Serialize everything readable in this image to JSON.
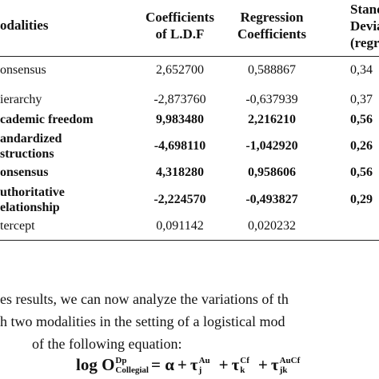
{
  "table": {
    "header": [
      "odalities",
      [
        "Coefficients",
        "of L.D.F"
      ],
      [
        "Regression",
        "Coefficients"
      ],
      [
        "Stand",
        "Devia",
        "(regre"
      ]
    ],
    "rows": [
      {
        "label": [
          "onsensus"
        ],
        "bold": false,
        "cells": [
          "2,652700",
          "0,588867",
          "0,34"
        ]
      },
      {
        "label": [
          "ierarchy"
        ],
        "bold": false,
        "cells": [
          "-2,873760",
          "-0,637939",
          "0,37"
        ]
      },
      {
        "label": [
          "cademic freedom"
        ],
        "bold": true,
        "cells": [
          "9,983480",
          "2,216210",
          "0,56"
        ]
      },
      {
        "label": [
          "andardized",
          "structions"
        ],
        "bold": true,
        "cells": [
          "-4,698110",
          "-1,042920",
          "0,26"
        ]
      },
      {
        "label": [
          "onsensus"
        ],
        "bold": true,
        "cells": [
          "4,318280",
          "0,958606",
          "0,56"
        ]
      },
      {
        "label": [
          "uthoritative",
          "elationship"
        ],
        "bold": true,
        "cells": [
          "-2,224570",
          "-0,493827",
          "0,29"
        ]
      },
      {
        "label": [
          "tercept"
        ],
        "bold": false,
        "cells": [
          "0,091142",
          "0,020232",
          ""
        ]
      }
    ]
  },
  "paragraph": [
    "es results, we can now analyze the variations of th",
    "h two modalities in the setting of a logistical mod",
    "of the following equation:"
  ],
  "equation": {
    "log_o": "log O",
    "o_sup": "Dp",
    "o_sub": "Collegial",
    "equals_alpha": "= α",
    "plus": "+",
    "terms": [
      {
        "sym": "τ",
        "sub": "j",
        "sup": "Au"
      },
      {
        "sym": "τ",
        "sub": "k",
        "sup": "Cf"
      },
      {
        "sym": "τ",
        "sub": "jk",
        "sup": "AuCf"
      }
    ]
  }
}
